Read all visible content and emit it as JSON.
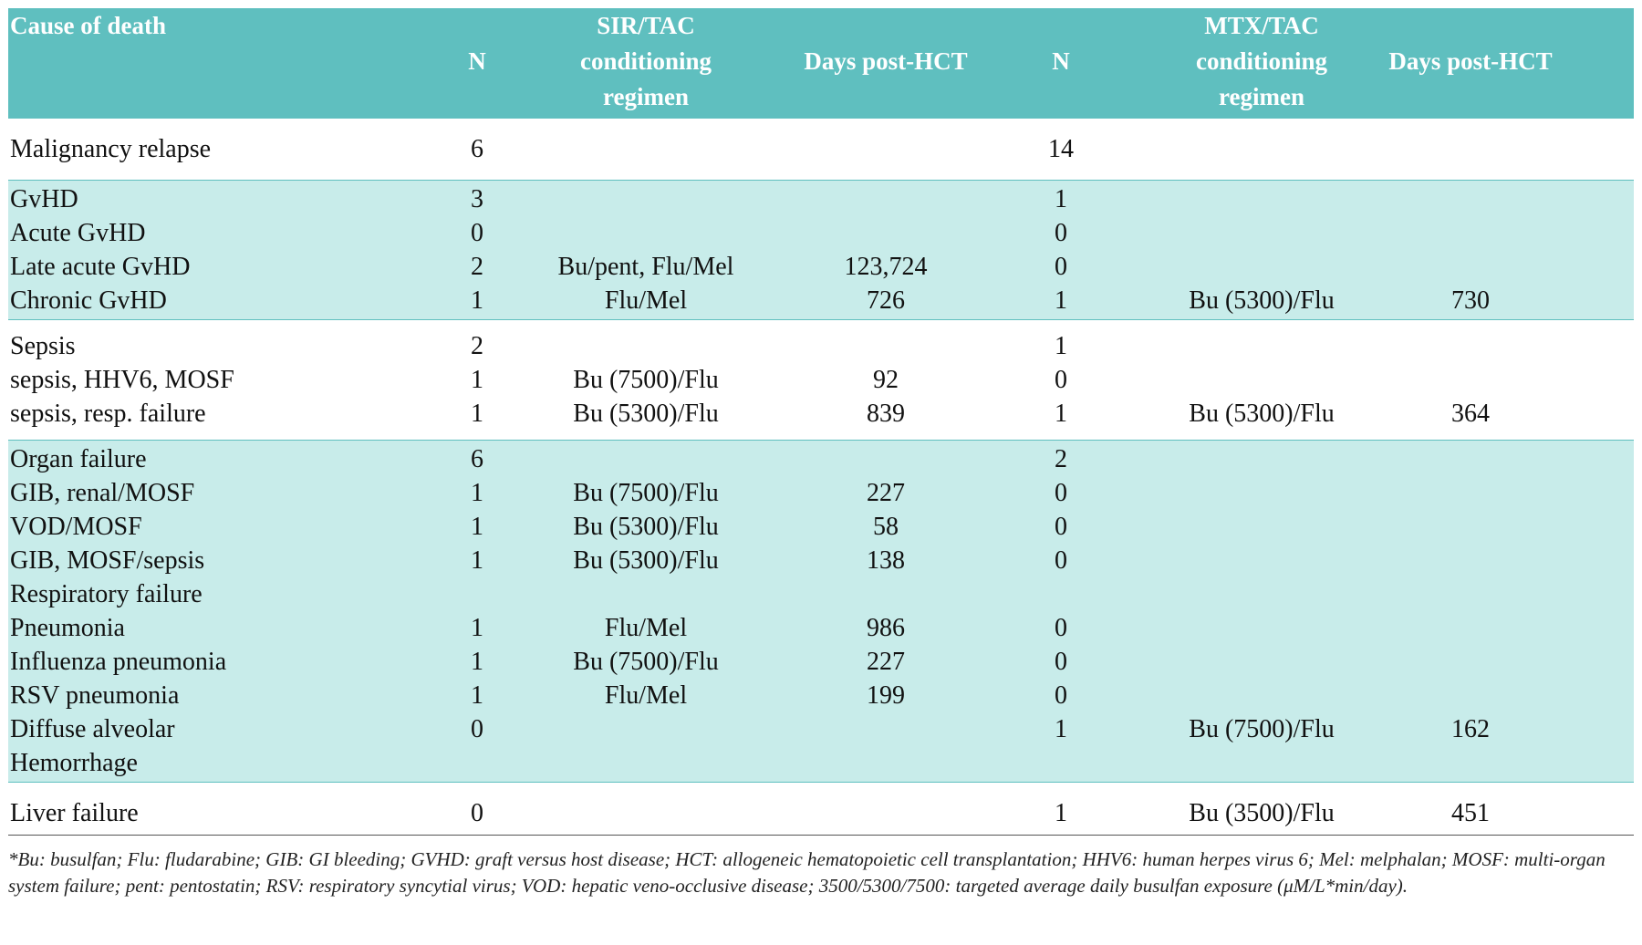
{
  "table": {
    "header": [
      "Cause of death",
      "N",
      "SIR/TAC conditioning regimen",
      "Days post-HCT",
      "N",
      "MTX/TAC conditioning regimen",
      "Days post-HCT"
    ],
    "groups": [
      {
        "shaded": false,
        "rows": [
          [
            "Malignancy relapse",
            "6",
            null,
            null,
            "14",
            null,
            null
          ]
        ]
      },
      {
        "shaded": true,
        "rows": [
          [
            "GvHD",
            "3",
            null,
            null,
            "1",
            null,
            null
          ],
          [
            "Acute GvHD",
            "0",
            null,
            null,
            "0",
            null,
            null
          ],
          [
            "Late acute GvHD",
            "2",
            "Bu/pent, Flu/Mel",
            "123,724",
            "0",
            null,
            null
          ],
          [
            "Chronic GvHD",
            "1",
            "Flu/Mel",
            "726",
            "1",
            "Bu (5300)/Flu",
            "730"
          ]
        ]
      },
      {
        "shaded": false,
        "rows": [
          [
            "Sepsis",
            "2",
            null,
            null,
            "1",
            null,
            null
          ],
          [
            "sepsis, HHV6, MOSF",
            "1",
            "Bu (7500)/Flu",
            "92",
            "0",
            null,
            null
          ],
          [
            "sepsis, resp. failure",
            "1",
            "Bu (5300)/Flu",
            "839",
            "1",
            "Bu (5300)/Flu",
            "364"
          ]
        ]
      },
      {
        "shaded": true,
        "rows": [
          [
            "Organ failure",
            "6",
            null,
            null,
            "2",
            null,
            null
          ],
          [
            "GIB, renal/MOSF",
            "1",
            "Bu (7500)/Flu",
            "227",
            "0",
            null,
            null
          ],
          [
            "VOD/MOSF",
            "1",
            "Bu (5300)/Flu",
            "58",
            "0",
            null,
            null
          ],
          [
            "GIB, MOSF/sepsis",
            "1",
            "Bu (5300)/Flu",
            "138",
            "0",
            null,
            null
          ],
          [
            "Respiratory failure",
            null,
            null,
            null,
            null,
            null,
            null
          ],
          [
            "Pneumonia",
            "1",
            "Flu/Mel",
            "986",
            "0",
            null,
            null
          ],
          [
            "Influenza pneumonia",
            "1",
            "Bu (7500)/Flu",
            "227",
            "0",
            null,
            null
          ],
          [
            "RSV pneumonia",
            "1",
            "Flu/Mel",
            "199",
            "0",
            null,
            null
          ],
          [
            "Diffuse alveolar",
            "0",
            null,
            null,
            "1",
            "Bu (7500)/Flu",
            "162"
          ],
          [
            "Hemorrhage",
            null,
            null,
            null,
            null,
            null,
            null
          ]
        ]
      },
      {
        "shaded": false,
        "rows": [
          [
            "Liver failure",
            "0",
            null,
            null,
            "1",
            "Bu (3500)/Flu",
            "451"
          ]
        ]
      }
    ],
    "footnote": "*Bu: busulfan; Flu: fludarabine; GIB: GI bleeding; GVHD: graft versus host disease; HCT: allogeneic hematopoietic cell transplantation; HHV6: human herpes virus 6; Mel: melphalan; MOSF: multi-organ system failure; pent: pentostatin;  RSV: respiratory syncytial virus; VOD: hepatic veno-occlusive disease; 3500/5300/7500: targeted average daily busulfan exposure (μM/L*min/day)."
  }
}
